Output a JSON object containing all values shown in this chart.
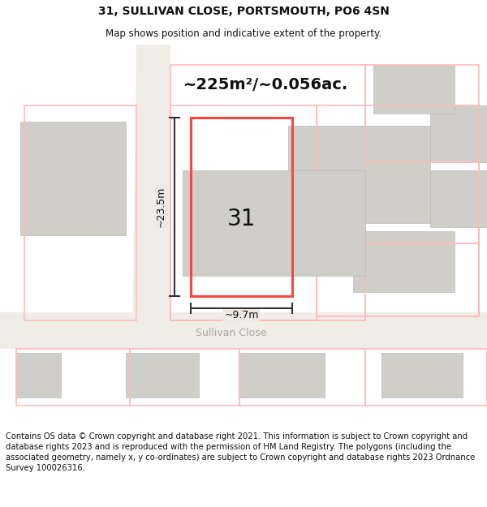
{
  "title": "31, SULLIVAN CLOSE, PORTSMOUTH, PO6 4SN",
  "subtitle": "Map shows position and indicative extent of the property.",
  "footer": "Contains OS data © Crown copyright and database right 2021. This information is subject to Crown copyright and database rights 2023 and is reproduced with the permission of HM Land Registry. The polygons (including the associated geometry, namely x, y co-ordinates) are subject to Crown copyright and database rights 2023 Ordnance Survey 100026316.",
  "area_label": "~225m²/~0.056ac.",
  "width_label": "~9.7m",
  "height_label": "~23.5m",
  "number_label": "31",
  "street_label": "Sullivan Close",
  "map_bg": "#ede9e1",
  "building_fill": "#d0cec8",
  "building_edge": "#bbbbbb",
  "road_fill": "#f5f3ef",
  "red_parcel": "#ff4444",
  "light_red_parcel": "#ffbbbb",
  "dim_color": "#333333",
  "title_fontsize": 10,
  "subtitle_fontsize": 8.5,
  "area_fontsize": 14,
  "number_fontsize": 20,
  "dim_fontsize": 9,
  "street_fontsize": 9,
  "footer_fontsize": 7.2
}
